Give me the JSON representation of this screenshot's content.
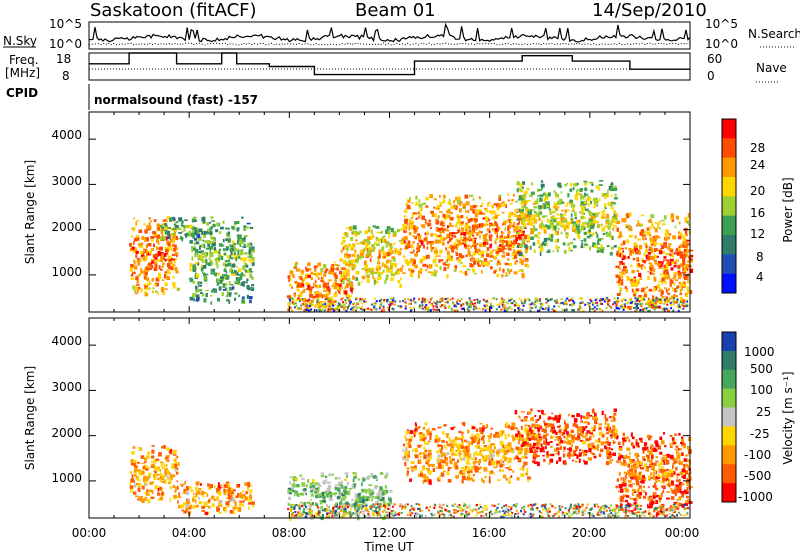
{
  "header": {
    "station": "Saskatoon (fitACF)",
    "beam": "Beam 01",
    "date": "14/Sep/2010"
  },
  "strip": {
    "nsky_label": "N.Sky",
    "nsearch_label": "N.Search",
    "freq_label_1": "Freq.",
    "freq_label_2": "[MHz]",
    "nave_label": "Nave",
    "cpid_label": "CPID",
    "cpid_text": "normalsound (fast) -157",
    "nsky_ticks": [
      "10^5",
      "10^0"
    ],
    "nsearch_ticks": [
      "10^5",
      "10^0"
    ],
    "freq_ticks": [
      "18",
      "8"
    ],
    "nave_ticks": [
      "60",
      "0"
    ]
  },
  "power_panel": {
    "ylabel": "Slant Range [km]",
    "yticks": [
      "4000",
      "3000",
      "2000",
      "1000"
    ],
    "colorbar_title": "Power [dB]",
    "colorbar_labels": [
      "28",
      "24",
      "20",
      "16",
      "12",
      "8",
      "4"
    ],
    "colors": [
      "#ff0000",
      "#ff4d00",
      "#ff9900",
      "#ffd600",
      "#9dd030",
      "#3da050",
      "#2e7d6b",
      "#1f4fb3",
      "#0010ff"
    ]
  },
  "velocity_panel": {
    "ylabel": "Slant Range [km]",
    "yticks": [
      "4000",
      "3000",
      "2000",
      "1000"
    ],
    "colorbar_title": "Velocity [m s⁻¹]",
    "colorbar_labels": [
      "1000",
      "500",
      "100",
      "25",
      "-25",
      "-100",
      "-500",
      "-1000"
    ],
    "colors": [
      "#1a3fb0",
      "#2e7d6b",
      "#46a65a",
      "#88d040",
      "#c4c4c4",
      "#ffd600",
      "#ff9900",
      "#ff5a00",
      "#ff0000"
    ]
  },
  "xaxis": {
    "xlabel": "Time UT",
    "ticks": [
      "00:00",
      "04:00",
      "08:00",
      "12:00",
      "16:00",
      "20:00",
      "00:00"
    ]
  },
  "chart_data": [
    {
      "type": "heatmap",
      "title": "Saskatoon (fitACF) Beam 01 14/Sep/2010",
      "quantity": "Power",
      "xlabel": "Time UT",
      "ylabel": "Slant Range [km]",
      "xlim": [
        0,
        24
      ],
      "ylim": [
        180,
        4600
      ],
      "colorbar": {
        "label": "Power [dB]",
        "ticks": [
          4,
          8,
          12,
          16,
          20,
          24,
          28
        ],
        "range": [
          0,
          30
        ]
      },
      "echo_regions": [
        {
          "t": [
            1.6,
            3.5
          ],
          "r": [
            600,
            2300
          ],
          "level": 24
        },
        {
          "t": [
            2.8,
            4.6
          ],
          "r": [
            1800,
            2300
          ],
          "level": 12
        },
        {
          "t": [
            4.0,
            6.5
          ],
          "r": [
            400,
            2300
          ],
          "level": 14
        },
        {
          "t": [
            7.9,
            10.5
          ],
          "r": [
            250,
            1300
          ],
          "level": 22
        },
        {
          "t": [
            10.0,
            12.5
          ],
          "r": [
            800,
            2100
          ],
          "level": 20
        },
        {
          "t": [
            12.5,
            17.5
          ],
          "r": [
            1000,
            2800
          ],
          "level": 24
        },
        {
          "t": [
            17.0,
            21.0
          ],
          "r": [
            1500,
            3100
          ],
          "level": 16
        },
        {
          "t": [
            21.0,
            24.0
          ],
          "r": [
            300,
            2400
          ],
          "level": 22
        }
      ]
    },
    {
      "type": "heatmap",
      "quantity": "Velocity",
      "xlabel": "Time UT",
      "ylabel": "Slant Range [km]",
      "xlim": [
        0,
        24
      ],
      "ylim": [
        180,
        4600
      ],
      "colorbar": {
        "label": "Velocity [m s⁻¹]",
        "ticks": [
          1000,
          500,
          100,
          25,
          -25,
          -100,
          -500,
          -1000
        ]
      },
      "echo_regions": [
        {
          "t": [
            1.6,
            3.5
          ],
          "r": [
            600,
            1800
          ],
          "level": -100
        },
        {
          "t": [
            3.5,
            6.5
          ],
          "r": [
            300,
            1000
          ],
          "level": -100
        },
        {
          "t": [
            7.9,
            12.0
          ],
          "r": [
            200,
            1200
          ],
          "level": 0
        },
        {
          "t": [
            12.5,
            17.5
          ],
          "r": [
            1000,
            2300
          ],
          "level": -100
        },
        {
          "t": [
            17.0,
            21.0
          ],
          "r": [
            1400,
            2600
          ],
          "level": -500
        },
        {
          "t": [
            21.0,
            24.0
          ],
          "r": [
            300,
            2100
          ],
          "level": -500
        }
      ]
    },
    {
      "type": "line",
      "quantity": "N.Sky / N.Search and Freq. / Nave",
      "xlim": [
        0,
        24
      ],
      "series": [
        {
          "name": "Freq. [MHz]",
          "x": [
            0,
            1.6,
            1.6,
            3.5,
            3.5,
            5.3,
            5.3,
            5.9,
            5.9,
            7.2,
            7.2,
            9.0,
            9.0,
            13.0,
            13.0,
            17.3,
            17.3,
            19.3,
            19.3,
            21.6,
            21.6,
            24
          ],
          "y": [
            14,
            14,
            18,
            18,
            14,
            14,
            18,
            18,
            14,
            14,
            13,
            13,
            10,
            10,
            15,
            15,
            17,
            17,
            15,
            15,
            12,
            12
          ]
        }
      ]
    }
  ]
}
